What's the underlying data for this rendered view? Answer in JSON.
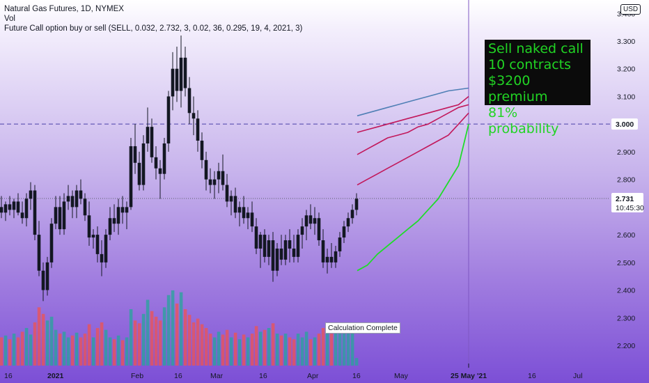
{
  "legend": {
    "symbol_line": "Natural Gas Futures, 1D, NYMEX",
    "vol_label": "Vol",
    "indicator_line": "Future Call option buy or sell (SELL, 0.032, 2.732, 3, 0.02, 36, 0.295, 19, 4, 2021, 3)"
  },
  "currency_badge": "USD",
  "annotation": {
    "lines": [
      "Sell naked call",
      "10 contracts",
      "$3200 premium",
      "81% probability"
    ]
  },
  "status_tooltip": "Calculation Complete",
  "price_labels": {
    "strike_label": "3.000",
    "last_price_label": "2.731",
    "countdown_label": "10:45:30"
  },
  "colors": {
    "up_candle": "#26a69a",
    "down_candle": "#ef5350",
    "candle_body": "#131722",
    "strike_line": "#4a3fa8",
    "last_price_line": "#5b5f6b",
    "vertical_marker": "#7e57c2",
    "band_upper": "#4f7fb5",
    "band_red": "#c2185b",
    "band_green": "#1fdc2a",
    "annotation_text": "#21d424"
  },
  "chart_data": {
    "type": "candlestick",
    "ylim": [
      2.15,
      3.4
    ],
    "y_ticks": [
      2.2,
      2.3,
      2.4,
      2.5,
      2.6,
      2.7,
      2.8,
      2.9,
      3.0,
      3.1,
      3.2,
      3.3,
      3.4
    ],
    "y_tick_labels": [
      "2.200",
      "2.300",
      "2.400",
      "2.500",
      "2.600",
      "2.700",
      "2.800",
      "2.900",
      "",
      "3.100",
      "3.200",
      "3.300",
      "3.400"
    ],
    "x_axis_labels": [
      "16",
      "2021",
      "Feb",
      "16",
      "Mar",
      "16",
      "Apr",
      "16",
      "May",
      "25 May '21",
      "16",
      "Jul"
    ],
    "strike_price": 3.0,
    "last_price": 2.731,
    "candles": [
      {
        "o": 2.7,
        "h": 2.74,
        "l": 2.66,
        "c": 2.68
      },
      {
        "o": 2.68,
        "h": 2.72,
        "l": 2.65,
        "c": 2.71
      },
      {
        "o": 2.71,
        "h": 2.74,
        "l": 2.67,
        "c": 2.69
      },
      {
        "o": 2.69,
        "h": 2.73,
        "l": 2.66,
        "c": 2.72
      },
      {
        "o": 2.72,
        "h": 2.75,
        "l": 2.67,
        "c": 2.68
      },
      {
        "o": 2.68,
        "h": 2.72,
        "l": 2.64,
        "c": 2.66
      },
      {
        "o": 2.66,
        "h": 2.75,
        "l": 2.63,
        "c": 2.73
      },
      {
        "o": 2.73,
        "h": 2.79,
        "l": 2.69,
        "c": 2.76
      },
      {
        "o": 2.76,
        "h": 2.78,
        "l": 2.58,
        "c": 2.6
      },
      {
        "o": 2.6,
        "h": 2.65,
        "l": 2.45,
        "c": 2.47
      },
      {
        "o": 2.47,
        "h": 2.5,
        "l": 2.36,
        "c": 2.4
      },
      {
        "o": 2.4,
        "h": 2.52,
        "l": 2.38,
        "c": 2.5
      },
      {
        "o": 2.5,
        "h": 2.66,
        "l": 2.48,
        "c": 2.64
      },
      {
        "o": 2.64,
        "h": 2.74,
        "l": 2.62,
        "c": 2.7
      },
      {
        "o": 2.7,
        "h": 2.74,
        "l": 2.6,
        "c": 2.62
      },
      {
        "o": 2.62,
        "h": 2.75,
        "l": 2.6,
        "c": 2.72
      },
      {
        "o": 2.72,
        "h": 2.78,
        "l": 2.69,
        "c": 2.74
      },
      {
        "o": 2.74,
        "h": 2.76,
        "l": 2.66,
        "c": 2.7
      },
      {
        "o": 2.7,
        "h": 2.78,
        "l": 2.66,
        "c": 2.76
      },
      {
        "o": 2.76,
        "h": 2.8,
        "l": 2.71,
        "c": 2.73
      },
      {
        "o": 2.73,
        "h": 2.75,
        "l": 2.65,
        "c": 2.67
      },
      {
        "o": 2.67,
        "h": 2.72,
        "l": 2.56,
        "c": 2.59
      },
      {
        "o": 2.59,
        "h": 2.62,
        "l": 2.55,
        "c": 2.6
      },
      {
        "o": 2.6,
        "h": 2.63,
        "l": 2.5,
        "c": 2.53
      },
      {
        "o": 2.53,
        "h": 2.58,
        "l": 2.45,
        "c": 2.5
      },
      {
        "o": 2.5,
        "h": 2.62,
        "l": 2.48,
        "c": 2.6
      },
      {
        "o": 2.6,
        "h": 2.7,
        "l": 2.58,
        "c": 2.66
      },
      {
        "o": 2.66,
        "h": 2.71,
        "l": 2.61,
        "c": 2.64
      },
      {
        "o": 2.64,
        "h": 2.73,
        "l": 2.6,
        "c": 2.7
      },
      {
        "o": 2.7,
        "h": 2.74,
        "l": 2.64,
        "c": 2.68
      },
      {
        "o": 2.68,
        "h": 2.72,
        "l": 2.62,
        "c": 2.7
      },
      {
        "o": 2.7,
        "h": 2.95,
        "l": 2.69,
        "c": 2.92
      },
      {
        "o": 2.92,
        "h": 3.0,
        "l": 2.82,
        "c": 2.86
      },
      {
        "o": 2.86,
        "h": 2.9,
        "l": 2.76,
        "c": 2.78
      },
      {
        "o": 2.78,
        "h": 2.96,
        "l": 2.76,
        "c": 2.93
      },
      {
        "o": 2.93,
        "h": 3.06,
        "l": 2.9,
        "c": 2.99
      },
      {
        "o": 2.99,
        "h": 3.02,
        "l": 2.86,
        "c": 2.88
      },
      {
        "o": 2.88,
        "h": 2.92,
        "l": 2.8,
        "c": 2.84
      },
      {
        "o": 2.84,
        "h": 2.87,
        "l": 2.73,
        "c": 2.82
      },
      {
        "o": 2.82,
        "h": 2.95,
        "l": 2.8,
        "c": 2.93
      },
      {
        "o": 2.93,
        "h": 3.12,
        "l": 2.9,
        "c": 3.1
      },
      {
        "o": 3.1,
        "h": 3.26,
        "l": 3.05,
        "c": 3.2
      },
      {
        "o": 3.2,
        "h": 3.28,
        "l": 3.08,
        "c": 3.12
      },
      {
        "o": 3.12,
        "h": 3.32,
        "l": 3.06,
        "c": 3.24
      },
      {
        "o": 3.24,
        "h": 3.28,
        "l": 3.1,
        "c": 3.13
      },
      {
        "o": 3.13,
        "h": 3.17,
        "l": 3.0,
        "c": 3.04
      },
      {
        "o": 3.04,
        "h": 3.1,
        "l": 2.96,
        "c": 3.02
      },
      {
        "o": 3.02,
        "h": 3.05,
        "l": 2.9,
        "c": 2.94
      },
      {
        "o": 2.94,
        "h": 2.97,
        "l": 2.84,
        "c": 2.87
      },
      {
        "o": 2.87,
        "h": 2.9,
        "l": 2.76,
        "c": 2.8
      },
      {
        "o": 2.8,
        "h": 2.84,
        "l": 2.75,
        "c": 2.78
      },
      {
        "o": 2.78,
        "h": 2.83,
        "l": 2.73,
        "c": 2.8
      },
      {
        "o": 2.8,
        "h": 2.86,
        "l": 2.75,
        "c": 2.83
      },
      {
        "o": 2.83,
        "h": 2.89,
        "l": 2.76,
        "c": 2.78
      },
      {
        "o": 2.78,
        "h": 2.82,
        "l": 2.7,
        "c": 2.72
      },
      {
        "o": 2.72,
        "h": 2.76,
        "l": 2.67,
        "c": 2.74
      },
      {
        "o": 2.74,
        "h": 2.77,
        "l": 2.66,
        "c": 2.68
      },
      {
        "o": 2.68,
        "h": 2.72,
        "l": 2.63,
        "c": 2.7
      },
      {
        "o": 2.7,
        "h": 2.74,
        "l": 2.64,
        "c": 2.66
      },
      {
        "o": 2.66,
        "h": 2.7,
        "l": 2.62,
        "c": 2.68
      },
      {
        "o": 2.68,
        "h": 2.72,
        "l": 2.61,
        "c": 2.63
      },
      {
        "o": 2.63,
        "h": 2.66,
        "l": 2.53,
        "c": 2.55
      },
      {
        "o": 2.55,
        "h": 2.61,
        "l": 2.48,
        "c": 2.6
      },
      {
        "o": 2.6,
        "h": 2.62,
        "l": 2.5,
        "c": 2.52
      },
      {
        "o": 2.52,
        "h": 2.6,
        "l": 2.49,
        "c": 2.58
      },
      {
        "o": 2.58,
        "h": 2.61,
        "l": 2.43,
        "c": 2.47
      },
      {
        "o": 2.47,
        "h": 2.57,
        "l": 2.45,
        "c": 2.55
      },
      {
        "o": 2.55,
        "h": 2.6,
        "l": 2.49,
        "c": 2.51
      },
      {
        "o": 2.51,
        "h": 2.6,
        "l": 2.49,
        "c": 2.58
      },
      {
        "o": 2.58,
        "h": 2.62,
        "l": 2.5,
        "c": 2.55
      },
      {
        "o": 2.55,
        "h": 2.6,
        "l": 2.5,
        "c": 2.52
      },
      {
        "o": 2.52,
        "h": 2.62,
        "l": 2.5,
        "c": 2.6
      },
      {
        "o": 2.6,
        "h": 2.66,
        "l": 2.55,
        "c": 2.63
      },
      {
        "o": 2.63,
        "h": 2.69,
        "l": 2.58,
        "c": 2.67
      },
      {
        "o": 2.67,
        "h": 2.71,
        "l": 2.62,
        "c": 2.64
      },
      {
        "o": 2.64,
        "h": 2.7,
        "l": 2.6,
        "c": 2.66
      },
      {
        "o": 2.66,
        "h": 2.68,
        "l": 2.56,
        "c": 2.58
      },
      {
        "o": 2.58,
        "h": 2.62,
        "l": 2.48,
        "c": 2.5
      },
      {
        "o": 2.5,
        "h": 2.55,
        "l": 2.46,
        "c": 2.52
      },
      {
        "o": 2.52,
        "h": 2.57,
        "l": 2.48,
        "c": 2.5
      },
      {
        "o": 2.5,
        "h": 2.56,
        "l": 2.48,
        "c": 2.54
      },
      {
        "o": 2.54,
        "h": 2.61,
        "l": 2.52,
        "c": 2.59
      },
      {
        "o": 2.59,
        "h": 2.65,
        "l": 2.57,
        "c": 2.63
      },
      {
        "o": 2.63,
        "h": 2.68,
        "l": 2.61,
        "c": 2.66
      },
      {
        "o": 2.66,
        "h": 2.71,
        "l": 2.64,
        "c": 2.69
      },
      {
        "o": 2.69,
        "h": 2.75,
        "l": 2.67,
        "c": 2.73
      }
    ],
    "volume": [
      {
        "v": 0.3,
        "up": false
      },
      {
        "v": 0.32,
        "up": true
      },
      {
        "v": 0.28,
        "up": false
      },
      {
        "v": 0.34,
        "up": true
      },
      {
        "v": 0.3,
        "up": false
      },
      {
        "v": 0.36,
        "up": false
      },
      {
        "v": 0.4,
        "up": true
      },
      {
        "v": 0.33,
        "up": true
      },
      {
        "v": 0.46,
        "up": false
      },
      {
        "v": 0.62,
        "up": false
      },
      {
        "v": 0.55,
        "up": false
      },
      {
        "v": 0.48,
        "up": true
      },
      {
        "v": 0.52,
        "up": true
      },
      {
        "v": 0.38,
        "up": true
      },
      {
        "v": 0.34,
        "up": false
      },
      {
        "v": 0.36,
        "up": true
      },
      {
        "v": 0.3,
        "up": true
      },
      {
        "v": 0.32,
        "up": false
      },
      {
        "v": 0.35,
        "up": true
      },
      {
        "v": 0.3,
        "up": false
      },
      {
        "v": 0.34,
        "up": false
      },
      {
        "v": 0.44,
        "up": false
      },
      {
        "v": 0.3,
        "up": true
      },
      {
        "v": 0.4,
        "up": false
      },
      {
        "v": 0.46,
        "up": false
      },
      {
        "v": 0.38,
        "up": true
      },
      {
        "v": 0.3,
        "up": true
      },
      {
        "v": 0.28,
        "up": false
      },
      {
        "v": 0.32,
        "up": true
      },
      {
        "v": 0.27,
        "up": false
      },
      {
        "v": 0.3,
        "up": true
      },
      {
        "v": 0.6,
        "up": true
      },
      {
        "v": 0.48,
        "up": false
      },
      {
        "v": 0.45,
        "up": false
      },
      {
        "v": 0.55,
        "up": true
      },
      {
        "v": 0.7,
        "up": true
      },
      {
        "v": 0.58,
        "up": false
      },
      {
        "v": 0.52,
        "up": false
      },
      {
        "v": 0.48,
        "up": false
      },
      {
        "v": 0.62,
        "up": true
      },
      {
        "v": 0.75,
        "up": true
      },
      {
        "v": 0.8,
        "up": true
      },
      {
        "v": 0.66,
        "up": false
      },
      {
        "v": 0.78,
        "up": true
      },
      {
        "v": 0.6,
        "up": false
      },
      {
        "v": 0.54,
        "up": false
      },
      {
        "v": 0.46,
        "up": false
      },
      {
        "v": 0.5,
        "up": false
      },
      {
        "v": 0.44,
        "up": false
      },
      {
        "v": 0.4,
        "up": false
      },
      {
        "v": 0.34,
        "up": false
      },
      {
        "v": 0.3,
        "up": true
      },
      {
        "v": 0.36,
        "up": true
      },
      {
        "v": 0.33,
        "up": false
      },
      {
        "v": 0.38,
        "up": false
      },
      {
        "v": 0.3,
        "up": true
      },
      {
        "v": 0.35,
        "up": false
      },
      {
        "v": 0.28,
        "up": true
      },
      {
        "v": 0.33,
        "up": false
      },
      {
        "v": 0.3,
        "up": true
      },
      {
        "v": 0.34,
        "up": false
      },
      {
        "v": 0.42,
        "up": false
      },
      {
        "v": 0.36,
        "up": true
      },
      {
        "v": 0.38,
        "up": false
      },
      {
        "v": 0.4,
        "up": true
      },
      {
        "v": 0.45,
        "up": false
      },
      {
        "v": 0.34,
        "up": true
      },
      {
        "v": 0.32,
        "up": false
      },
      {
        "v": 0.34,
        "up": true
      },
      {
        "v": 0.3,
        "up": false
      },
      {
        "v": 0.28,
        "up": false
      },
      {
        "v": 0.34,
        "up": true
      },
      {
        "v": 0.3,
        "up": true
      },
      {
        "v": 0.36,
        "up": true
      },
      {
        "v": 0.28,
        "up": false
      },
      {
        "v": 0.3,
        "up": true
      },
      {
        "v": 0.34,
        "up": false
      },
      {
        "v": 0.4,
        "up": false
      },
      {
        "v": 0.36,
        "up": true
      },
      {
        "v": 0.34,
        "up": false
      },
      {
        "v": 0.38,
        "up": true
      },
      {
        "v": 0.42,
        "up": true
      },
      {
        "v": 0.44,
        "up": true
      },
      {
        "v": 0.4,
        "up": true
      },
      {
        "v": 0.36,
        "up": true
      },
      {
        "v": 0.08,
        "up": true
      }
    ],
    "projection_bands": {
      "upper_blue": [
        3.03,
        3.04,
        3.05,
        3.06,
        3.07,
        3.08,
        3.09,
        3.1,
        3.11,
        3.12,
        3.125,
        3.13
      ],
      "red_1": [
        2.97,
        2.98,
        2.99,
        3.0,
        3.01,
        3.02,
        3.03,
        3.04,
        3.05,
        3.06,
        3.07,
        3.1
      ],
      "red_2": [
        2.89,
        2.91,
        2.93,
        2.95,
        2.96,
        2.97,
        2.99,
        3.0,
        3.02,
        3.04,
        3.06,
        3.07
      ],
      "red_3": [
        2.78,
        2.8,
        2.82,
        2.84,
        2.86,
        2.88,
        2.9,
        2.92,
        2.94,
        2.96,
        3.0,
        3.04
      ],
      "green": [
        2.47,
        2.49,
        2.53,
        2.56,
        2.59,
        2.62,
        2.65,
        2.69,
        2.73,
        2.79,
        2.85,
        3.0
      ]
    }
  }
}
